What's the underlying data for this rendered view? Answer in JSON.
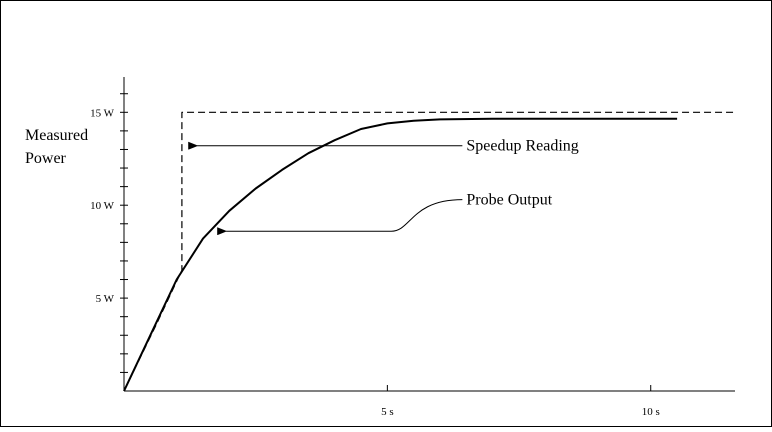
{
  "chart_data": {
    "type": "line",
    "title": "",
    "ylabel_lines": [
      "Measured",
      "Power"
    ],
    "xlabel": "",
    "xlim": [
      0,
      11.6
    ],
    "ylim": [
      0,
      16.9
    ],
    "x_ticks": [
      {
        "value": 5,
        "label": "5 s"
      },
      {
        "value": 10,
        "label": "10 s"
      }
    ],
    "y_ticks": [
      {
        "value": 5,
        "label": "5 W"
      },
      {
        "value": 10,
        "label": "10 W"
      },
      {
        "value": 15,
        "label": "15 W"
      }
    ],
    "y_minor_step": 1,
    "grid": false,
    "series": [
      {
        "name": "Speedup Reading",
        "style": "dashed",
        "x": [
          0,
          0.6,
          1.1,
          1.1,
          3,
          6,
          9,
          11.6
        ],
        "y": [
          0,
          3.5,
          6.5,
          15,
          15,
          15,
          15,
          15
        ]
      },
      {
        "name": "Probe Output",
        "style": "solid",
        "x": [
          0,
          0.5,
          1.0,
          1.5,
          2.0,
          2.5,
          3.0,
          3.5,
          4.0,
          4.5,
          5.0,
          5.5,
          6.0,
          7.0,
          8.0,
          10.5
        ],
        "y": [
          0,
          3.0,
          6.0,
          8.2,
          9.7,
          10.9,
          11.9,
          12.8,
          13.5,
          14.1,
          14.4,
          14.55,
          14.62,
          14.65,
          14.65,
          14.65
        ]
      }
    ],
    "annotations": [
      {
        "text": "Speedup Reading",
        "label_at": [
          6.5,
          13.2
        ],
        "arrow_to": [
          1.2,
          13.2
        ]
      },
      {
        "text": "Probe Output",
        "label_at": [
          6.5,
          10.3
        ],
        "arrow_to": [
          1.75,
          8.6
        ]
      }
    ]
  }
}
